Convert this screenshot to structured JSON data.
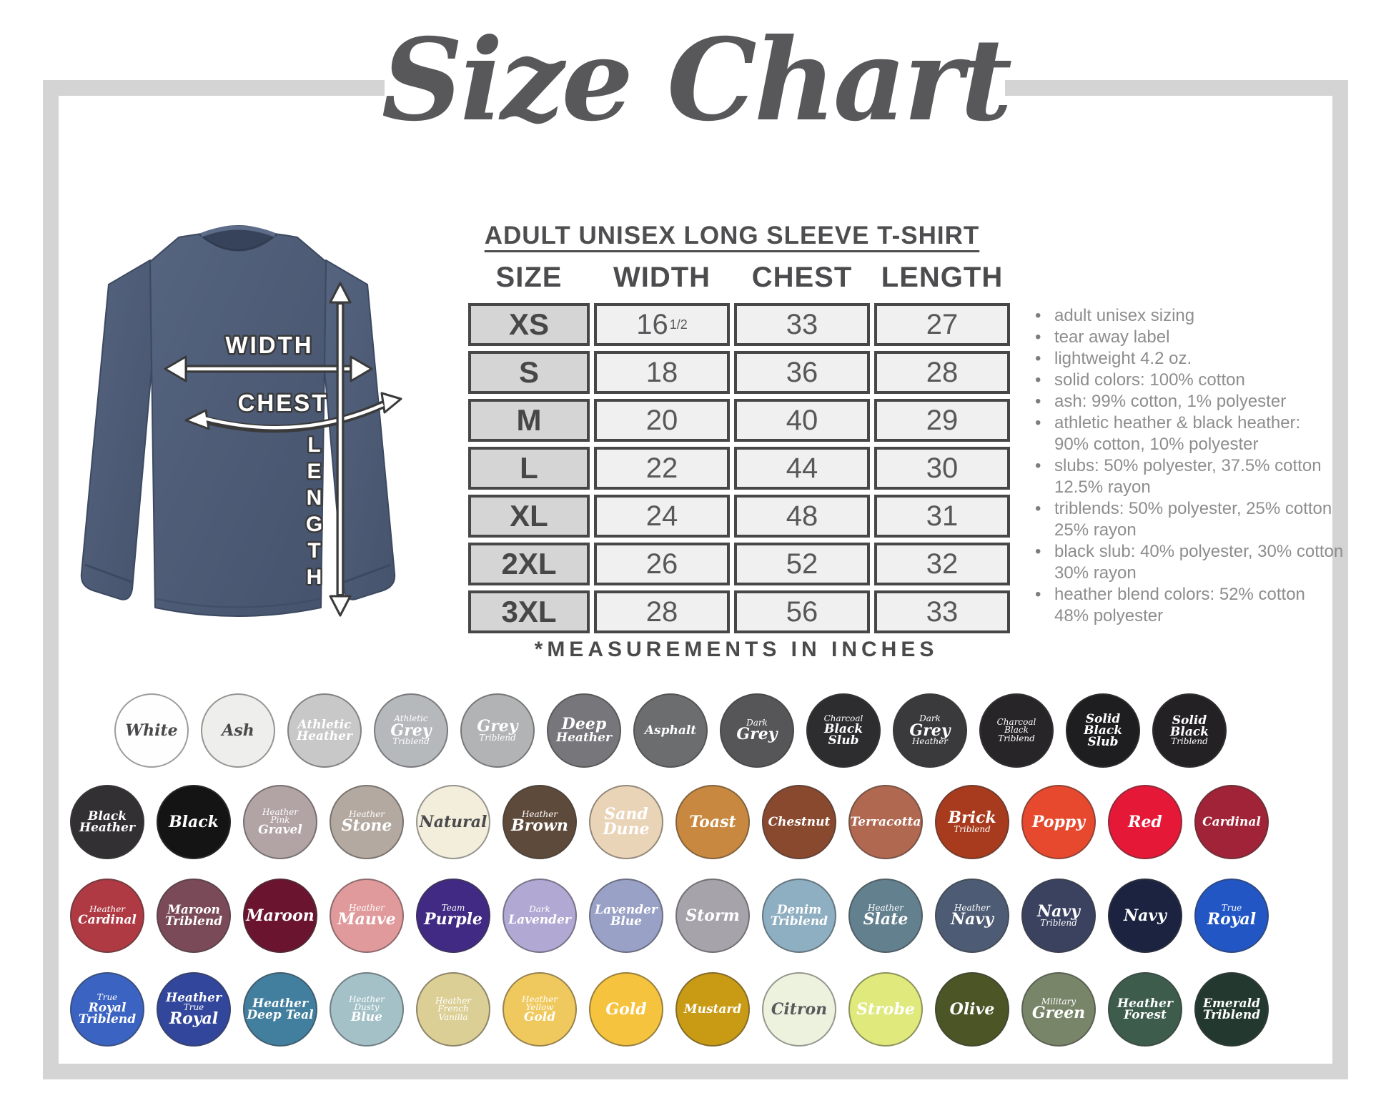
{
  "title": "Size Chart",
  "product_heading": "ADULT UNISEX LONG SLEEVE T-SHIRT",
  "measurements_note": "*MEASUREMENTS IN INCHES",
  "diagram": {
    "width_label": "WIDTH",
    "chest_label": "CHEST",
    "length_label": "LENGTH",
    "shirt_color": "#4d5c77"
  },
  "size_table": {
    "columns": [
      "SIZE",
      "WIDTH",
      "CHEST",
      "LENGTH"
    ],
    "rows": [
      {
        "size": "XS",
        "width": "16",
        "width_sup": "1/2",
        "chest": "33",
        "length": "27"
      },
      {
        "size": "S",
        "width": "18",
        "width_sup": "",
        "chest": "36",
        "length": "28"
      },
      {
        "size": "M",
        "width": "20",
        "width_sup": "",
        "chest": "40",
        "length": "29"
      },
      {
        "size": "L",
        "width": "22",
        "width_sup": "",
        "chest": "44",
        "length": "30"
      },
      {
        "size": "XL",
        "width": "24",
        "width_sup": "",
        "chest": "48",
        "length": "31"
      },
      {
        "size": "2XL",
        "width": "26",
        "width_sup": "",
        "chest": "52",
        "length": "32"
      },
      {
        "size": "3XL",
        "width": "28",
        "width_sup": "",
        "chest": "56",
        "length": "33"
      }
    ]
  },
  "details": [
    {
      "lines": [
        "adult unisex sizing"
      ]
    },
    {
      "lines": [
        "tear away label"
      ]
    },
    {
      "lines": [
        "lightweight 4.2 oz."
      ]
    },
    {
      "lines": [
        "solid colors: 100% cotton"
      ]
    },
    {
      "lines": [
        "ash: 99% cotton, 1% polyester"
      ]
    },
    {
      "lines": [
        "athletic heather & black heather:",
        "90% cotton, 10% polyester"
      ]
    },
    {
      "lines": [
        "slubs: 50% polyester, 37.5% cotton",
        "12.5% rayon"
      ]
    },
    {
      "lines": [
        "triblends: 50% polyester, 25% cotton",
        "25% rayon"
      ]
    },
    {
      "lines": [
        "black slub: 40% polyester, 30% cotton",
        "30% rayon"
      ]
    },
    {
      "lines": [
        "heather blend colors: 52% cotton",
        "48% polyester"
      ]
    }
  ],
  "swatch_rows": [
    {
      "items": [
        {
          "bg": "#fefefe",
          "fg": "#4a4a4c",
          "lines": [
            {
              "t": "White",
              "sz": "lg"
            }
          ]
        },
        {
          "bg": "#eeeeec",
          "fg": "#4a4a4c",
          "lines": [
            {
              "t": "Ash",
              "sz": "lg"
            }
          ]
        },
        {
          "bg": "#c8c8c8",
          "lines": [
            {
              "t": "Athletic",
              "sz": "md"
            },
            {
              "t": "Heather",
              "sz": "md"
            }
          ]
        },
        {
          "bg": "#b6b9bc",
          "lines": [
            {
              "t": "Athletic",
              "sz": "sm"
            },
            {
              "t": "Grey",
              "sz": "lg"
            },
            {
              "t": "Triblend",
              "sz": "sm"
            }
          ]
        },
        {
          "bg": "#b1b3b5",
          "lines": [
            {
              "t": "Grey",
              "sz": "lg"
            },
            {
              "t": "Triblend",
              "sz": "sm"
            }
          ]
        },
        {
          "bg": "#77767a",
          "lines": [
            {
              "t": "Deep",
              "sz": "lg"
            },
            {
              "t": "Heather",
              "sz": "md"
            }
          ]
        },
        {
          "bg": "#6c6d6f",
          "lines": [
            {
              "t": "Asphalt",
              "sz": "md"
            }
          ]
        },
        {
          "bg": "#565658",
          "lines": [
            {
              "t": "Dark",
              "sz": "sm"
            },
            {
              "t": "Grey",
              "sz": "lg"
            }
          ]
        },
        {
          "bg": "#2d2c2e",
          "lines": [
            {
              "t": "Charcoal",
              "sz": "sm"
            },
            {
              "t": "Black",
              "sz": "md"
            },
            {
              "t": "Slub",
              "sz": "md"
            }
          ]
        },
        {
          "bg": "#3a393b",
          "lines": [
            {
              "t": "Dark",
              "sz": "sm"
            },
            {
              "t": "Grey",
              "sz": "lg"
            },
            {
              "t": "Heather",
              "sz": "sm"
            }
          ]
        },
        {
          "bg": "#272528",
          "lines": [
            {
              "t": "Charcoal",
              "sz": "sm"
            },
            {
              "t": "Black",
              "sz": "sm"
            },
            {
              "t": "Triblend",
              "sz": "sm"
            }
          ]
        },
        {
          "bg": "#1e1d1f",
          "lines": [
            {
              "t": "Solid",
              "sz": "md"
            },
            {
              "t": "Black",
              "sz": "md"
            },
            {
              "t": "Slub",
              "sz": "md"
            }
          ]
        },
        {
          "bg": "#232124",
          "lines": [
            {
              "t": "Solid",
              "sz": "md"
            },
            {
              "t": "Black",
              "sz": "md"
            },
            {
              "t": "Triblend",
              "sz": "sm"
            }
          ]
        }
      ]
    },
    {
      "items": [
        {
          "bg": "#323033",
          "lines": [
            {
              "t": "Black",
              "sz": "md"
            },
            {
              "t": "Heather",
              "sz": "md"
            }
          ]
        },
        {
          "bg": "#141414",
          "lines": [
            {
              "t": "Black",
              "sz": "lg"
            }
          ]
        },
        {
          "bg": "#b2a3a4",
          "lines": [
            {
              "t": "Heather",
              "sz": "sm"
            },
            {
              "t": "Pink",
              "sz": "sm"
            },
            {
              "t": "Gravel",
              "sz": "md"
            }
          ]
        },
        {
          "bg": "#b3a9a1",
          "lines": [
            {
              "t": "Heather",
              "sz": "sm"
            },
            {
              "t": "Stone",
              "sz": "lg"
            }
          ]
        },
        {
          "bg": "#f3eddc",
          "fg": "#4a4a4c",
          "lines": [
            {
              "t": "Natural",
              "sz": "lg"
            }
          ]
        },
        {
          "bg": "#5e4a3b",
          "lines": [
            {
              "t": "Heather",
              "sz": "sm"
            },
            {
              "t": "Brown",
              "sz": "lg"
            }
          ]
        },
        {
          "bg": "#ead4b8",
          "lines": [
            {
              "t": "Sand",
              "sz": "lg"
            },
            {
              "t": "Dune",
              "sz": "lg"
            }
          ]
        },
        {
          "bg": "#c8883f",
          "lines": [
            {
              "t": "Toast",
              "sz": "lg"
            }
          ]
        },
        {
          "bg": "#88492f",
          "lines": [
            {
              "t": "Chestnut",
              "sz": "md"
            }
          ]
        },
        {
          "bg": "#b06851",
          "lines": [
            {
              "t": "Terracotta",
              "sz": "md"
            }
          ]
        },
        {
          "bg": "#a83b1e",
          "lines": [
            {
              "t": "Brick",
              "sz": "lg"
            },
            {
              "t": "Triblend",
              "sz": "sm"
            }
          ]
        },
        {
          "bg": "#e6492e",
          "lines": [
            {
              "t": "Poppy",
              "sz": "lg"
            }
          ]
        },
        {
          "bg": "#e51837",
          "lines": [
            {
              "t": "Red",
              "sz": "lg"
            }
          ]
        },
        {
          "bg": "#a02337",
          "lines": [
            {
              "t": "Cardinal",
              "sz": "md"
            }
          ]
        }
      ]
    },
    {
      "items": [
        {
          "bg": "#af3a43",
          "lines": [
            {
              "t": "Heather",
              "sz": "sm"
            },
            {
              "t": "Cardinal",
              "sz": "md"
            }
          ]
        },
        {
          "bg": "#7b4a59",
          "lines": [
            {
              "t": "Maroon",
              "sz": "md"
            },
            {
              "t": "Triblend",
              "sz": "md"
            }
          ]
        },
        {
          "bg": "#6a1430",
          "lines": [
            {
              "t": "Maroon",
              "sz": "lg"
            }
          ]
        },
        {
          "bg": "#e19a9c",
          "lines": [
            {
              "t": "Heather",
              "sz": "sm"
            },
            {
              "t": "Mauve",
              "sz": "lg"
            }
          ]
        },
        {
          "bg": "#402a83",
          "lines": [
            {
              "t": "Team",
              "sz": "sm"
            },
            {
              "t": "Purple",
              "sz": "lg"
            }
          ]
        },
        {
          "bg": "#b1a9d3",
          "lines": [
            {
              "t": "Dark",
              "sz": "sm"
            },
            {
              "t": "Lavender",
              "sz": "md"
            }
          ]
        },
        {
          "bg": "#99a1c7",
          "lines": [
            {
              "t": "Lavender",
              "sz": "md"
            },
            {
              "t": "Blue",
              "sz": "md"
            }
          ]
        },
        {
          "bg": "#a7a3aa",
          "lines": [
            {
              "t": "Storm",
              "sz": "lg"
            }
          ]
        },
        {
          "bg": "#8eaec1",
          "lines": [
            {
              "t": "Denim",
              "sz": "md"
            },
            {
              "t": "Triblend",
              "sz": "md"
            }
          ]
        },
        {
          "bg": "#63808f",
          "lines": [
            {
              "t": "Heather",
              "sz": "sm"
            },
            {
              "t": "Slate",
              "sz": "lg"
            }
          ]
        },
        {
          "bg": "#4d5c74",
          "lines": [
            {
              "t": "Heather",
              "sz": "sm"
            },
            {
              "t": "Navy",
              "sz": "lg"
            }
          ]
        },
        {
          "bg": "#3a4260",
          "lines": [
            {
              "t": "Navy",
              "sz": "lg"
            },
            {
              "t": "Triblend",
              "sz": "sm"
            }
          ]
        },
        {
          "bg": "#1b2340",
          "lines": [
            {
              "t": "Navy",
              "sz": "lg"
            }
          ]
        },
        {
          "bg": "#2256c5",
          "lines": [
            {
              "t": "True",
              "sz": "sm"
            },
            {
              "t": "Royal",
              "sz": "lg"
            }
          ]
        }
      ]
    },
    {
      "items": [
        {
          "bg": "#3a63c2",
          "lines": [
            {
              "t": "True",
              "sz": "sm"
            },
            {
              "t": "Royal",
              "sz": "md"
            },
            {
              "t": "Triblend",
              "sz": "md"
            }
          ]
        },
        {
          "bg": "#32479c",
          "lines": [
            {
              "t": "Heather",
              "sz": "md"
            },
            {
              "t": "True",
              "sz": "sm"
            },
            {
              "t": "Royal",
              "sz": "lg"
            }
          ]
        },
        {
          "bg": "#427f9e",
          "lines": [
            {
              "t": "Heather",
              "sz": "md"
            },
            {
              "t": "Deep Teal",
              "sz": "md"
            }
          ]
        },
        {
          "bg": "#a4c1c8",
          "lines": [
            {
              "t": "Heather",
              "sz": "sm"
            },
            {
              "t": "Dusty",
              "sz": "sm"
            },
            {
              "t": "Blue",
              "sz": "md"
            }
          ]
        },
        {
          "bg": "#dccf95",
          "lines": [
            {
              "t": "Heather",
              "sz": "sm"
            },
            {
              "t": "French",
              "sz": "sm"
            },
            {
              "t": "Vanilla",
              "sz": "sm"
            }
          ]
        },
        {
          "bg": "#f0c95e",
          "lines": [
            {
              "t": "Heather",
              "sz": "sm"
            },
            {
              "t": "Yellow",
              "sz": "sm"
            },
            {
              "t": "Gold",
              "sz": "md"
            }
          ]
        },
        {
          "bg": "#f5c33e",
          "lines": [
            {
              "t": "Gold",
              "sz": "lg"
            }
          ]
        },
        {
          "bg": "#c99b15",
          "lines": [
            {
              "t": "Mustard",
              "sz": "md"
            }
          ]
        },
        {
          "bg": "#edf2df",
          "fg": "#5a5a5c",
          "lines": [
            {
              "t": "Citron",
              "sz": "lg"
            }
          ]
        },
        {
          "bg": "#dfe97c",
          "lines": [
            {
              "t": "Strobe",
              "sz": "lg"
            }
          ]
        },
        {
          "bg": "#4b5526",
          "lines": [
            {
              "t": "Olive",
              "sz": "lg"
            }
          ]
        },
        {
          "bg": "#798569",
          "lines": [
            {
              "t": "Military",
              "sz": "sm"
            },
            {
              "t": "Green",
              "sz": "lg"
            }
          ]
        },
        {
          "bg": "#3d5c4c",
          "lines": [
            {
              "t": "Heather",
              "sz": "md"
            },
            {
              "t": "Forest",
              "sz": "md"
            }
          ]
        },
        {
          "bg": "#233930",
          "lines": [
            {
              "t": "Emerald",
              "sz": "md"
            },
            {
              "t": "Triblend",
              "sz": "md"
            }
          ]
        }
      ]
    }
  ]
}
